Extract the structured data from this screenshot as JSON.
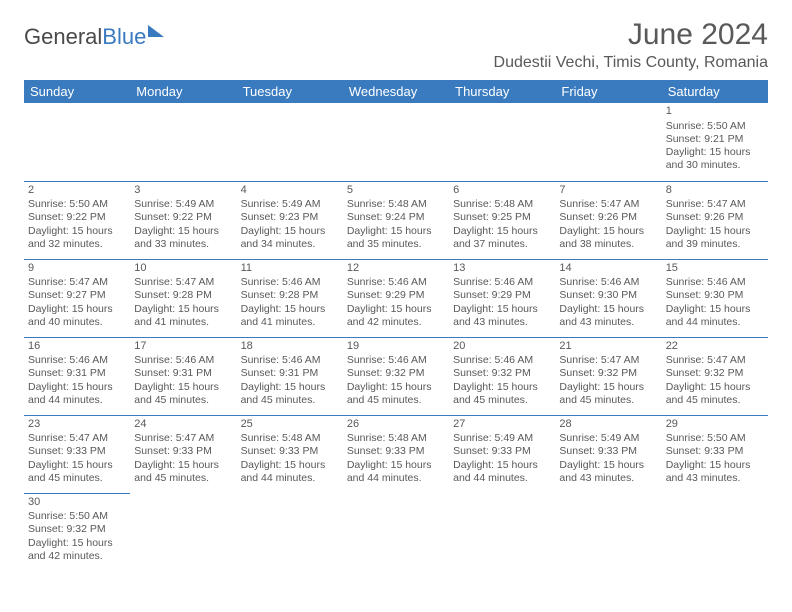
{
  "logo": {
    "part1": "General",
    "part2": "Blue"
  },
  "title": "June 2024",
  "location": "Dudestii Vechi, Timis County, Romania",
  "colors": {
    "header_bg": "#3a7bbf",
    "header_text": "#ffffff",
    "body_text": "#595959",
    "rule": "#3a7bbf",
    "page_bg": "#ffffff"
  },
  "typography": {
    "title_fontsize": 30,
    "location_fontsize": 16,
    "dayheader_fontsize": 13,
    "cell_fontsize": 10.5
  },
  "weekdays": [
    "Sunday",
    "Monday",
    "Tuesday",
    "Wednesday",
    "Thursday",
    "Friday",
    "Saturday"
  ],
  "weeks": [
    [
      null,
      null,
      null,
      null,
      null,
      null,
      {
        "n": "1",
        "sr": "Sunrise: 5:50 AM",
        "ss": "Sunset: 9:21 PM",
        "d1": "Daylight: 15 hours",
        "d2": "and 30 minutes."
      }
    ],
    [
      {
        "n": "2",
        "sr": "Sunrise: 5:50 AM",
        "ss": "Sunset: 9:22 PM",
        "d1": "Daylight: 15 hours",
        "d2": "and 32 minutes."
      },
      {
        "n": "3",
        "sr": "Sunrise: 5:49 AM",
        "ss": "Sunset: 9:22 PM",
        "d1": "Daylight: 15 hours",
        "d2": "and 33 minutes."
      },
      {
        "n": "4",
        "sr": "Sunrise: 5:49 AM",
        "ss": "Sunset: 9:23 PM",
        "d1": "Daylight: 15 hours",
        "d2": "and 34 minutes."
      },
      {
        "n": "5",
        "sr": "Sunrise: 5:48 AM",
        "ss": "Sunset: 9:24 PM",
        "d1": "Daylight: 15 hours",
        "d2": "and 35 minutes."
      },
      {
        "n": "6",
        "sr": "Sunrise: 5:48 AM",
        "ss": "Sunset: 9:25 PM",
        "d1": "Daylight: 15 hours",
        "d2": "and 37 minutes."
      },
      {
        "n": "7",
        "sr": "Sunrise: 5:47 AM",
        "ss": "Sunset: 9:26 PM",
        "d1": "Daylight: 15 hours",
        "d2": "and 38 minutes."
      },
      {
        "n": "8",
        "sr": "Sunrise: 5:47 AM",
        "ss": "Sunset: 9:26 PM",
        "d1": "Daylight: 15 hours",
        "d2": "and 39 minutes."
      }
    ],
    [
      {
        "n": "9",
        "sr": "Sunrise: 5:47 AM",
        "ss": "Sunset: 9:27 PM",
        "d1": "Daylight: 15 hours",
        "d2": "and 40 minutes."
      },
      {
        "n": "10",
        "sr": "Sunrise: 5:47 AM",
        "ss": "Sunset: 9:28 PM",
        "d1": "Daylight: 15 hours",
        "d2": "and 41 minutes."
      },
      {
        "n": "11",
        "sr": "Sunrise: 5:46 AM",
        "ss": "Sunset: 9:28 PM",
        "d1": "Daylight: 15 hours",
        "d2": "and 41 minutes."
      },
      {
        "n": "12",
        "sr": "Sunrise: 5:46 AM",
        "ss": "Sunset: 9:29 PM",
        "d1": "Daylight: 15 hours",
        "d2": "and 42 minutes."
      },
      {
        "n": "13",
        "sr": "Sunrise: 5:46 AM",
        "ss": "Sunset: 9:29 PM",
        "d1": "Daylight: 15 hours",
        "d2": "and 43 minutes."
      },
      {
        "n": "14",
        "sr": "Sunrise: 5:46 AM",
        "ss": "Sunset: 9:30 PM",
        "d1": "Daylight: 15 hours",
        "d2": "and 43 minutes."
      },
      {
        "n": "15",
        "sr": "Sunrise: 5:46 AM",
        "ss": "Sunset: 9:30 PM",
        "d1": "Daylight: 15 hours",
        "d2": "and 44 minutes."
      }
    ],
    [
      {
        "n": "16",
        "sr": "Sunrise: 5:46 AM",
        "ss": "Sunset: 9:31 PM",
        "d1": "Daylight: 15 hours",
        "d2": "and 44 minutes."
      },
      {
        "n": "17",
        "sr": "Sunrise: 5:46 AM",
        "ss": "Sunset: 9:31 PM",
        "d1": "Daylight: 15 hours",
        "d2": "and 45 minutes."
      },
      {
        "n": "18",
        "sr": "Sunrise: 5:46 AM",
        "ss": "Sunset: 9:31 PM",
        "d1": "Daylight: 15 hours",
        "d2": "and 45 minutes."
      },
      {
        "n": "19",
        "sr": "Sunrise: 5:46 AM",
        "ss": "Sunset: 9:32 PM",
        "d1": "Daylight: 15 hours",
        "d2": "and 45 minutes."
      },
      {
        "n": "20",
        "sr": "Sunrise: 5:46 AM",
        "ss": "Sunset: 9:32 PM",
        "d1": "Daylight: 15 hours",
        "d2": "and 45 minutes."
      },
      {
        "n": "21",
        "sr": "Sunrise: 5:47 AM",
        "ss": "Sunset: 9:32 PM",
        "d1": "Daylight: 15 hours",
        "d2": "and 45 minutes."
      },
      {
        "n": "22",
        "sr": "Sunrise: 5:47 AM",
        "ss": "Sunset: 9:32 PM",
        "d1": "Daylight: 15 hours",
        "d2": "and 45 minutes."
      }
    ],
    [
      {
        "n": "23",
        "sr": "Sunrise: 5:47 AM",
        "ss": "Sunset: 9:33 PM",
        "d1": "Daylight: 15 hours",
        "d2": "and 45 minutes."
      },
      {
        "n": "24",
        "sr": "Sunrise: 5:47 AM",
        "ss": "Sunset: 9:33 PM",
        "d1": "Daylight: 15 hours",
        "d2": "and 45 minutes."
      },
      {
        "n": "25",
        "sr": "Sunrise: 5:48 AM",
        "ss": "Sunset: 9:33 PM",
        "d1": "Daylight: 15 hours",
        "d2": "and 44 minutes."
      },
      {
        "n": "26",
        "sr": "Sunrise: 5:48 AM",
        "ss": "Sunset: 9:33 PM",
        "d1": "Daylight: 15 hours",
        "d2": "and 44 minutes."
      },
      {
        "n": "27",
        "sr": "Sunrise: 5:49 AM",
        "ss": "Sunset: 9:33 PM",
        "d1": "Daylight: 15 hours",
        "d2": "and 44 minutes."
      },
      {
        "n": "28",
        "sr": "Sunrise: 5:49 AM",
        "ss": "Sunset: 9:33 PM",
        "d1": "Daylight: 15 hours",
        "d2": "and 43 minutes."
      },
      {
        "n": "29",
        "sr": "Sunrise: 5:50 AM",
        "ss": "Sunset: 9:33 PM",
        "d1": "Daylight: 15 hours",
        "d2": "and 43 minutes."
      }
    ],
    [
      {
        "n": "30",
        "sr": "Sunrise: 5:50 AM",
        "ss": "Sunset: 9:32 PM",
        "d1": "Daylight: 15 hours",
        "d2": "and 42 minutes."
      },
      null,
      null,
      null,
      null,
      null,
      null
    ]
  ]
}
